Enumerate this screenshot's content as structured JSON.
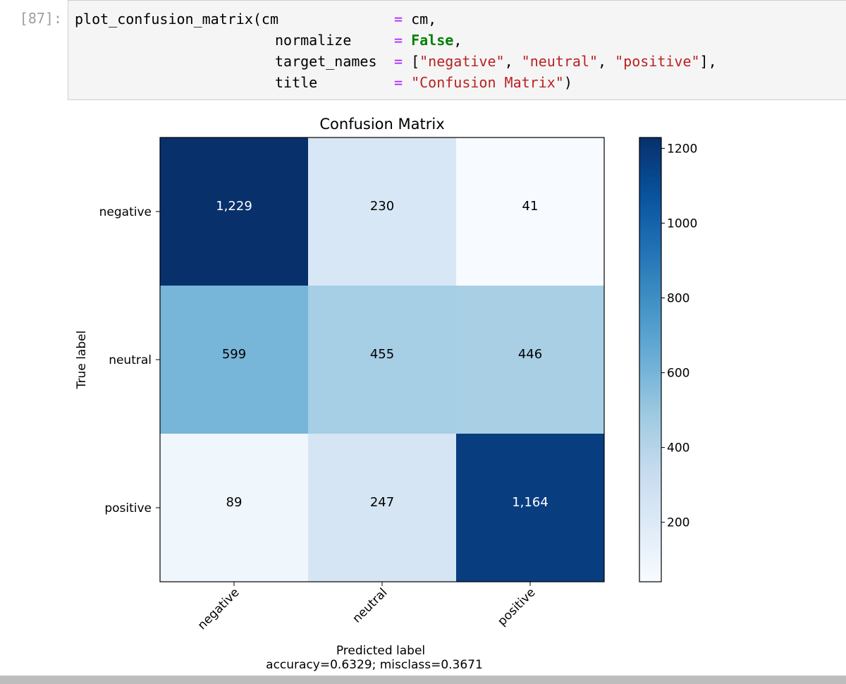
{
  "cell": {
    "prompt": "[87]:",
    "code": {
      "fn": "plot_confusion_matrix(",
      "p1": "cm",
      "p2": "normalize",
      "p3": "target_names",
      "p4": "title",
      "eq": "=",
      "cm_val": "cm,",
      "false_kw": "False",
      "comma": ",",
      "lb": "[",
      "s_neg": "\"negative\"",
      "s_neu": "\"neutral\"",
      "s_pos": "\"positive\"",
      "rb": "],",
      "sep": ", ",
      "s_title": "\"Confusion Matrix\"",
      "close": ")"
    }
  },
  "chart_data": {
    "type": "heatmap",
    "title": "Confusion Matrix",
    "xlabel": "Predicted label",
    "xlabel_sub": "accuracy=0.6329; misclass=0.3671",
    "ylabel": "True label",
    "x_categories": [
      "negative",
      "neutral",
      "positive"
    ],
    "y_categories": [
      "negative",
      "neutral",
      "positive"
    ],
    "values": [
      [
        1229,
        230,
        41
      ],
      [
        599,
        455,
        446
      ],
      [
        89,
        247,
        1164
      ]
    ],
    "cell_labels": [
      [
        "1,229",
        "230",
        "41"
      ],
      [
        "599",
        "455",
        "446"
      ],
      [
        "89",
        "247",
        "1,164"
      ]
    ],
    "colorbar": {
      "colormap": "Blues",
      "range": [
        41,
        1229
      ],
      "ticks": [
        200,
        400,
        600,
        800,
        1000,
        1200
      ],
      "tick_labels": [
        "200",
        "400",
        "600",
        "800",
        "1000",
        "1200"
      ]
    }
  }
}
